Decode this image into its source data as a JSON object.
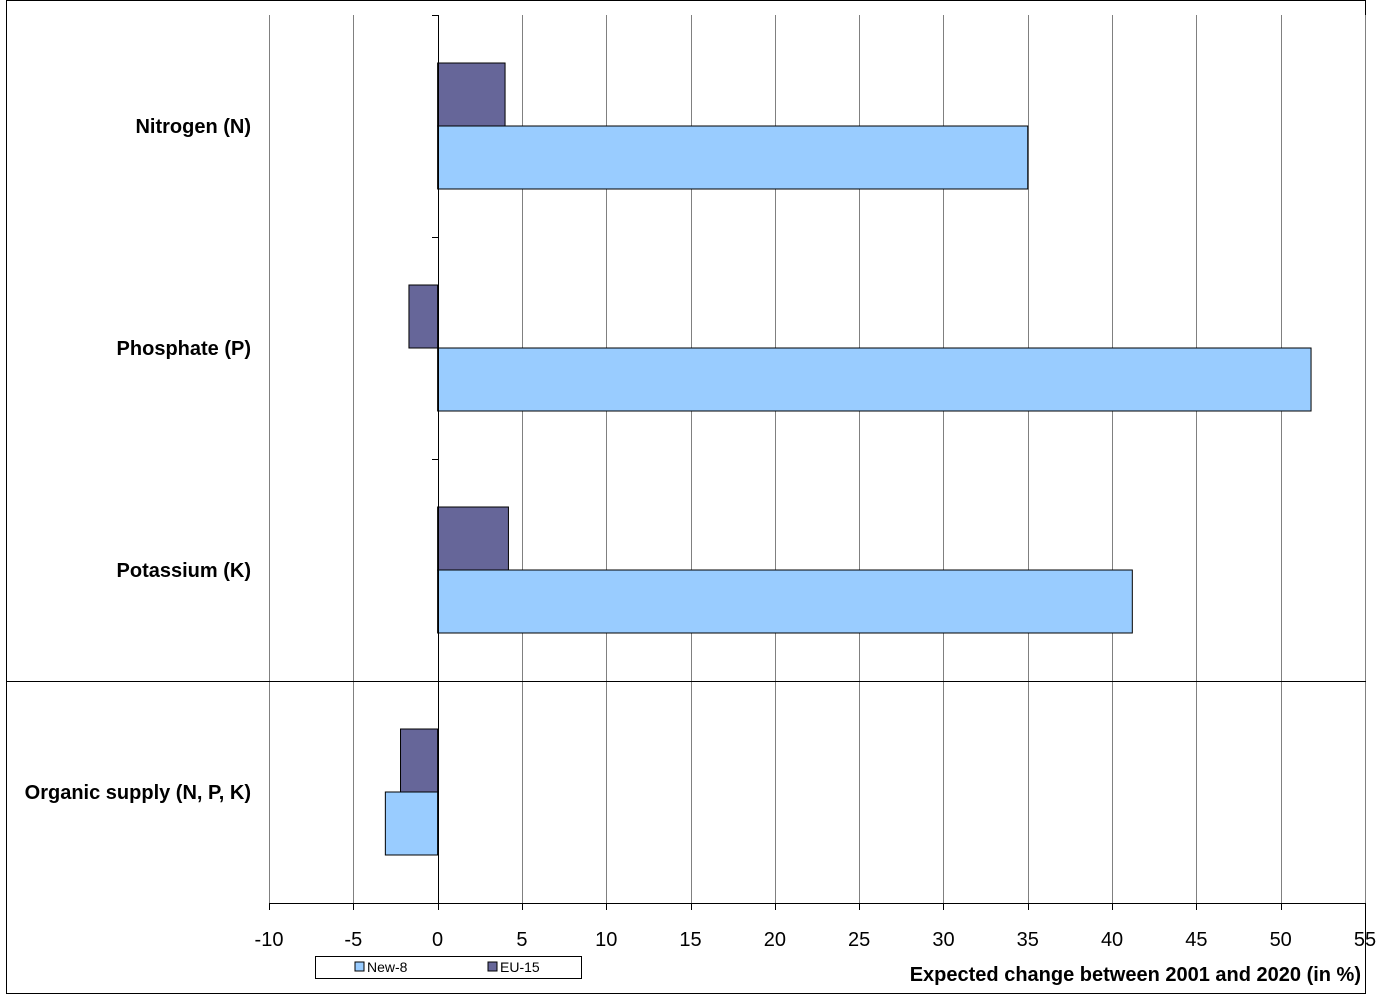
{
  "chart_data": {
    "type": "bar",
    "orientation": "horizontal",
    "categories": [
      "Nitrogen (N)",
      "Phosphate (P)",
      "Potassium (K)",
      "Organic supply (N, P, K)"
    ],
    "series": [
      {
        "name": "EU-15",
        "color": "#666699",
        "values": [
          4,
          -1.7,
          4.2,
          -2.2
        ]
      },
      {
        "name": "New-8",
        "color": "#99ccff",
        "values": [
          35,
          51.8,
          41.2,
          -3.1
        ]
      }
    ],
    "xlabel": "Expected change between 2001 and 2020 (in %)",
    "xlim": [
      -10,
      55
    ],
    "xticks": [
      -10,
      -5,
      0,
      5,
      10,
      15,
      20,
      25,
      30,
      35,
      40,
      45,
      50,
      55
    ],
    "xtick_labels": [
      "-10",
      "-5",
      "0",
      "5",
      "10",
      "15",
      "20",
      "25",
      "30",
      "35",
      "40",
      "45",
      "50",
      "55"
    ],
    "grid": true,
    "legend": {
      "position": "bottom-left",
      "entries": [
        {
          "name": "New-8",
          "color": "#99ccff"
        },
        {
          "name": "EU-15",
          "color": "#666699"
        }
      ]
    }
  }
}
